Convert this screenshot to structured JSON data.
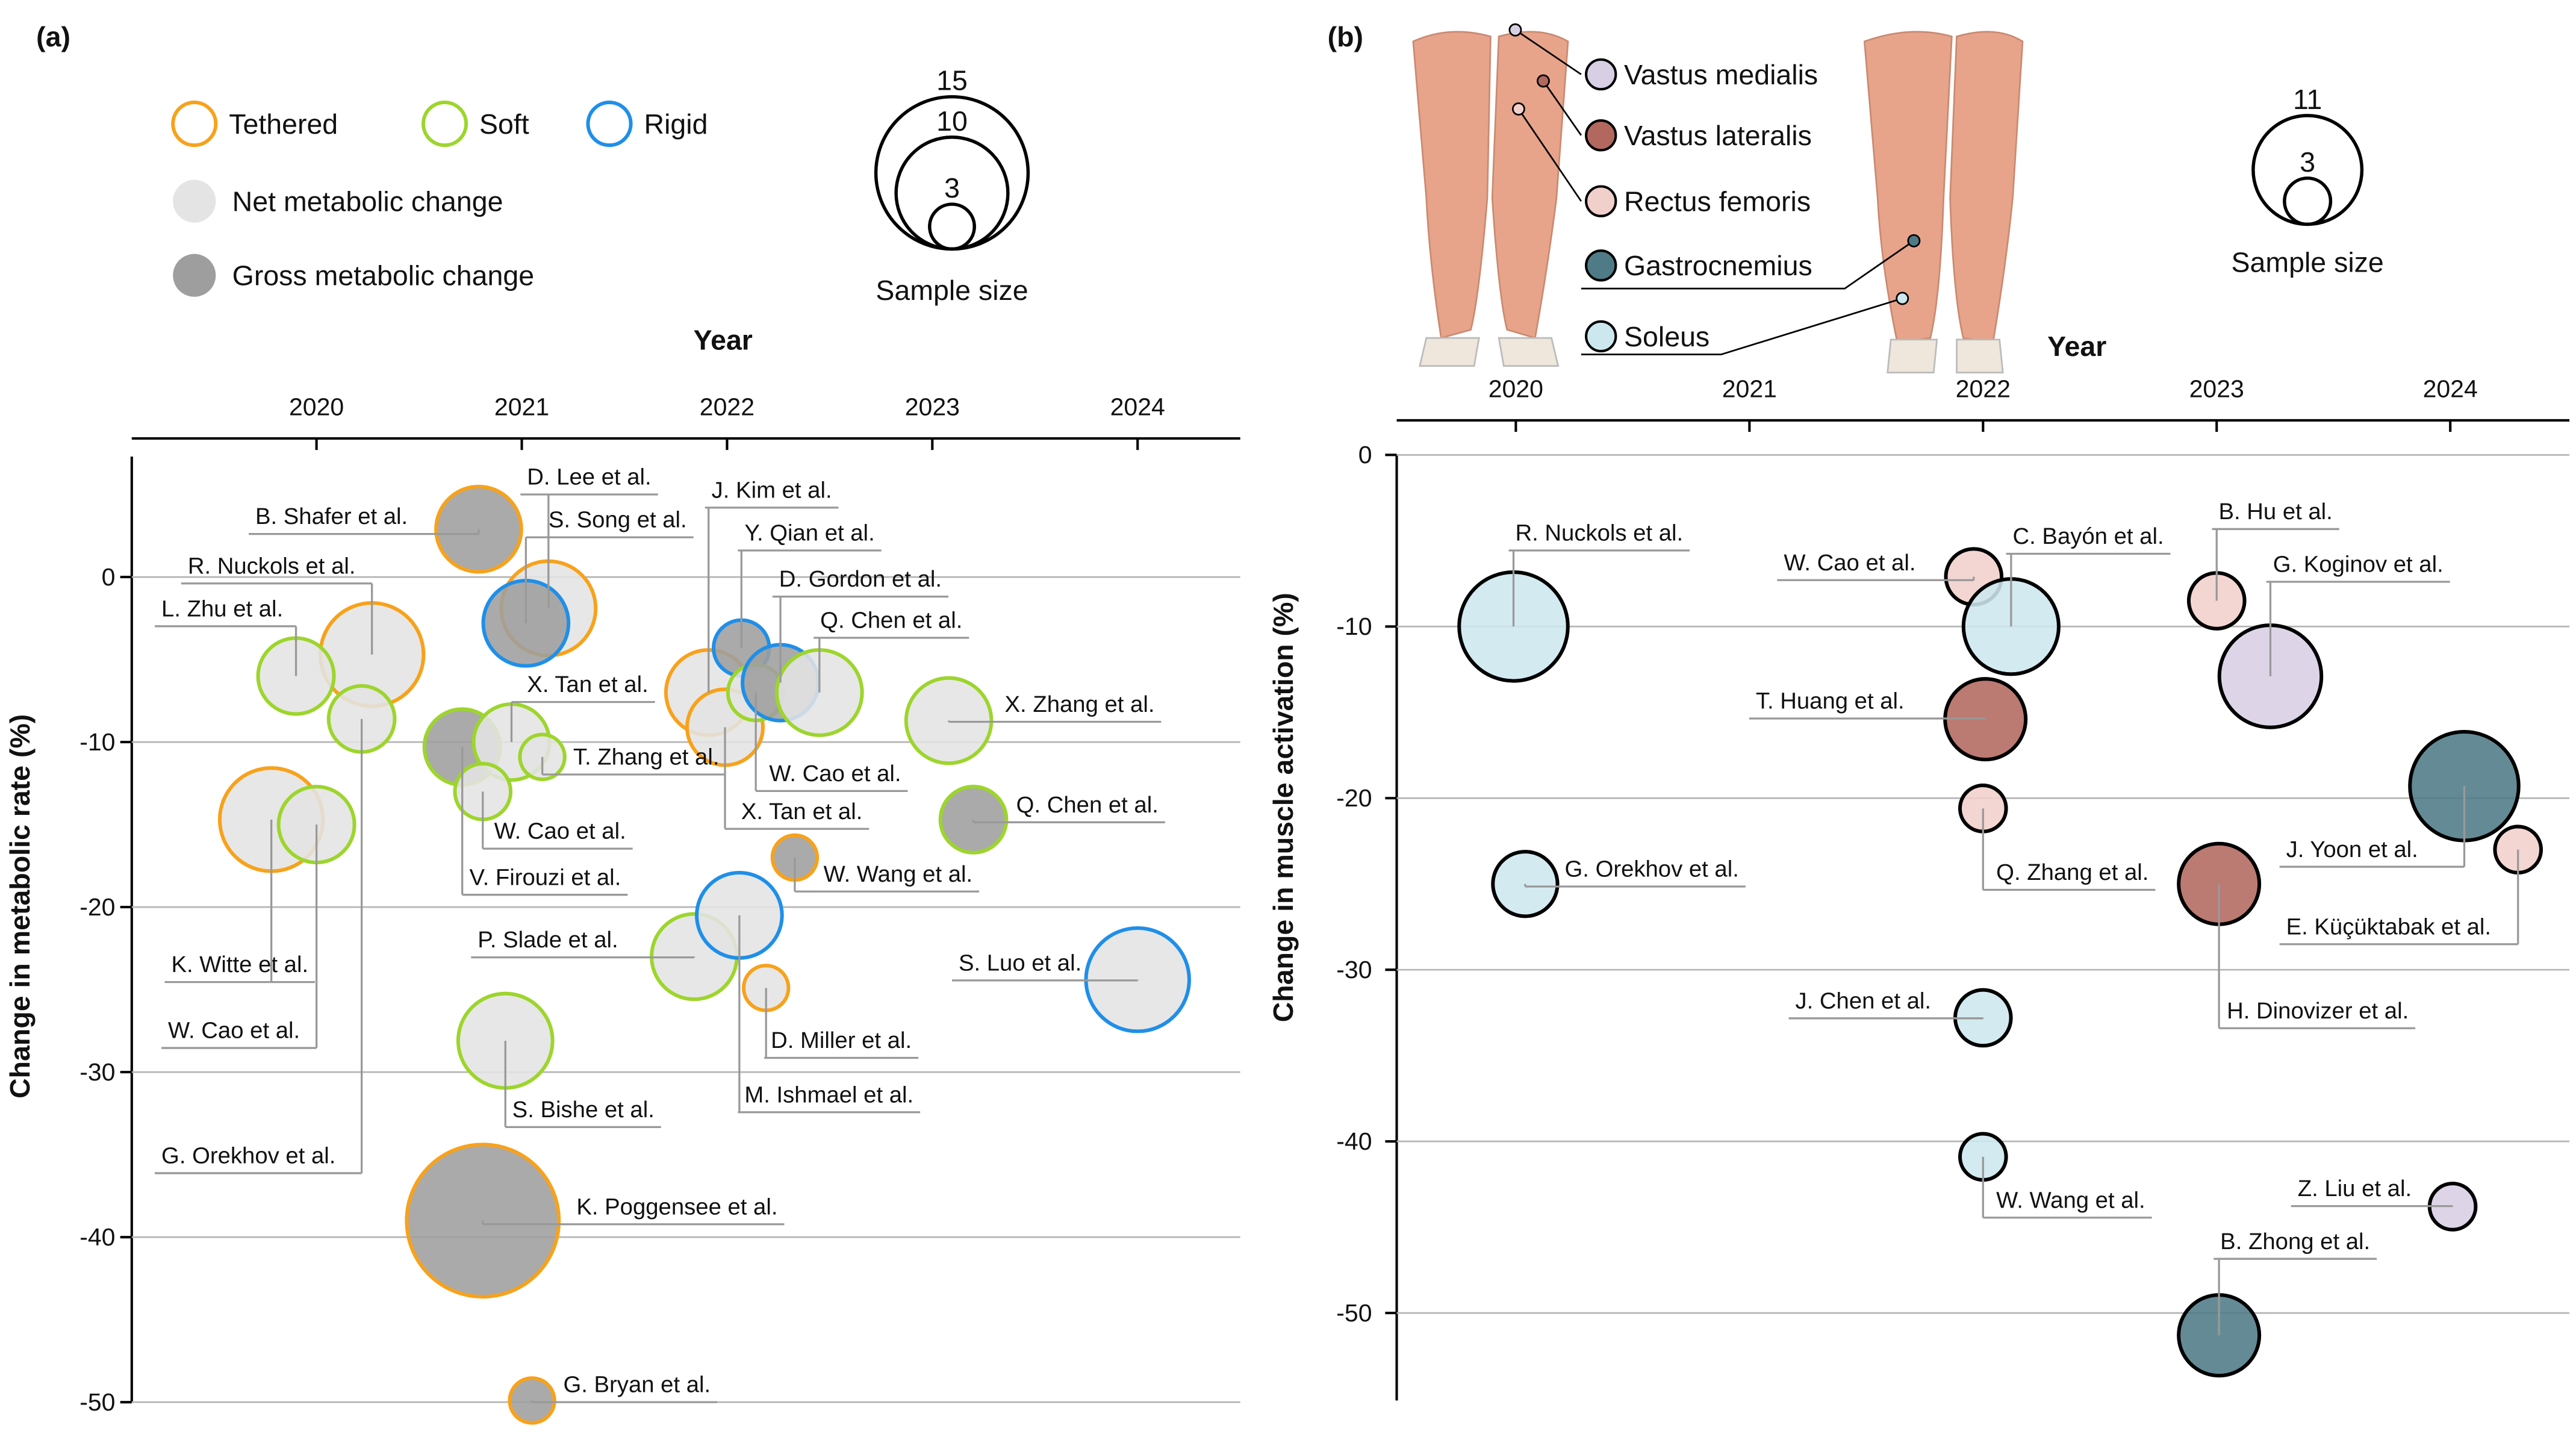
{
  "chart_data": [
    {
      "type": "bubble",
      "panel_label": "(a)",
      "x_label": "Year",
      "y_label": "Change in metabolic rate (%)",
      "x_axis_position": "top",
      "grid": true,
      "xlim": [
        2019.1,
        2024.5
      ],
      "ylim": [
        -50,
        7.3
      ],
      "xticks": [
        2020,
        2021,
        2022,
        2023,
        2024
      ],
      "yticks": [
        0,
        -10,
        -20,
        -30,
        -40,
        -50
      ],
      "edge_groups": [
        {
          "name": "Tethered",
          "color": "#f7a21b"
        },
        {
          "name": "Soft",
          "color": "#9dd52c"
        },
        {
          "name": "Rigid",
          "color": "#1f8fe8"
        }
      ],
      "fill_groups": [
        {
          "name": "Net metabolic change",
          "color": "#e4e4e4"
        },
        {
          "name": "Gross metabolic change",
          "color": "#9e9e9e"
        }
      ],
      "size_legend": {
        "title": "Sample size",
        "sizes": [
          15,
          10,
          3
        ]
      },
      "labels": [
        "B. Shafer et al.",
        "D. Lee et al.",
        "S. Song et al.",
        "R. Nuckols et al.",
        "L. Zhu et al.",
        "G. Orekhov et al.",
        "K. Witte et al.",
        "W. Cao et al.",
        "V. Firouzi et al.",
        "X. Tan et al.",
        "W. Cao et al.",
        "T. Zhang et al.",
        "J. Kim et al.",
        "X. Tan et al.",
        "Y. Qian et al.",
        "W. Cao et al.",
        "D. Gordon et al.",
        "Q. Chen et al.",
        "X. Zhang et al.",
        "Q. Chen et al.",
        "W. Wang et al.",
        "P. Slade et al.",
        "M. Ishmael et al.",
        "D. Miller et al.",
        "S. Luo et al.",
        "S. Bishe et al.",
        "K. Poggensee et al.",
        "G. Bryan et al."
      ],
      "x": [
        2020.79,
        2021.13,
        2021.02,
        2020.27,
        2019.9,
        2020.22,
        2019.78,
        2020.0,
        2020.71,
        2020.95,
        2020.81,
        2021.1,
        2021.91,
        2021.99,
        2022.07,
        2022.14,
        2022.26,
        2022.45,
        2023.08,
        2023.2,
        2022.33,
        2021.84,
        2022.06,
        2022.19,
        2024.0,
        2020.92,
        2020.81,
        2021.05
      ],
      "values": [
        2.9,
        -1.9,
        -2.8,
        -4.7,
        -6,
        -8.6,
        -14.7,
        -15,
        -10.3,
        -10,
        -13,
        -10.9,
        -7,
        -9.1,
        -4.3,
        -7,
        -6.4,
        -7,
        -8.7,
        -14.7,
        -17,
        -23,
        -20.5,
        -24.9,
        -24.4,
        -28.1,
        -39,
        -49.9
      ],
      "sizes": [
        7,
        8,
        7,
        9,
        6,
        5,
        9,
        6,
        6,
        6,
        4,
        3,
        7,
        6,
        4,
        4,
        6,
        7,
        7,
        5,
        3,
        7,
        7,
        3,
        9,
        8,
        15,
        3
      ],
      "point_edge": [
        "Tethered",
        "Tethered",
        "Rigid",
        "Tethered",
        "Soft",
        "Soft",
        "Tethered",
        "Soft",
        "Soft",
        "Soft",
        "Soft",
        "Soft",
        "Tethered",
        "Tethered",
        "Rigid",
        "Soft",
        "Rigid",
        "Soft",
        "Soft",
        "Soft",
        "Tethered",
        "Soft",
        "Rigid",
        "Tethered",
        "Rigid",
        "Soft",
        "Tethered",
        "Tethered"
      ],
      "point_fill": [
        "Gross metabolic change",
        "Net metabolic change",
        "Gross metabolic change",
        "Net metabolic change",
        "Net metabolic change",
        "Net metabolic change",
        "Net metabolic change",
        "Net metabolic change",
        "Gross metabolic change",
        "Net metabolic change",
        "Net metabolic change",
        "Net metabolic change",
        "Net metabolic change",
        "Net metabolic change",
        "Gross metabolic change",
        "Net metabolic change",
        "Gross metabolic change",
        "Net metabolic change",
        "Net metabolic change",
        "Gross metabolic change",
        "Gross metabolic change",
        "Net metabolic change",
        "Net metabolic change",
        "Net metabolic change",
        "Net metabolic change",
        "Net metabolic change",
        "Gross metabolic change",
        "Gross metabolic change"
      ]
    },
    {
      "type": "bubble",
      "panel_label": "(b)",
      "x_label": "Year",
      "y_label": "Change in muscle activation (%)",
      "x_axis_position": "top",
      "grid": true,
      "xlim": [
        2019.49,
        2024.51
      ],
      "ylim": [
        -55.1,
        0
      ],
      "xticks": [
        2020,
        2021,
        2022,
        2023,
        2024
      ],
      "yticks": [
        0,
        -10,
        -20,
        -30,
        -40,
        -50
      ],
      "edge_color": "#000000",
      "fill_groups": [
        {
          "name": "Vastus medialis",
          "color": "#d8cfe4"
        },
        {
          "name": "Vastus lateralis",
          "color": "#b2685e"
        },
        {
          "name": "Rectus femoris",
          "color": "#f1cfcb"
        },
        {
          "name": "Gastrocnemius",
          "color": "#4f7b86"
        },
        {
          "name": "Soleus",
          "color": "#cde7ee"
        }
      ],
      "size_legend": {
        "title": "Sample size",
        "sizes": [
          11,
          3
        ]
      },
      "labels": [
        "R. Nuckols et al.",
        "W. Cao et al.",
        "C. Bayón et al.",
        "T. Huang et al.",
        "Q. Zhang et al.",
        "G. Orekhov et al.",
        "J. Chen et al.",
        "W. Wang et al.",
        "B. Hu et al.",
        "G. Koginov et al.",
        "H. Dinovizer et al.",
        "J. Yoon et al.",
        "E. Küçüktabak et al.",
        "Z. Liu et al.",
        "B. Zhong et al."
      ],
      "x": [
        2019.99,
        2021.96,
        2022.12,
        2022.01,
        2022.0,
        2020.04,
        2022.0,
        2022.0,
        2023.0,
        2023.23,
        2023.01,
        2024.06,
        2024.29,
        2024.01,
        2023.01
      ],
      "values": [
        -10,
        -7.1,
        -10,
        -15.4,
        -20.6,
        -25,
        -32.8,
        -40.9,
        -8.5,
        -12.9,
        -25,
        -19.3,
        -23,
        -43.8,
        -51.3
      ],
      "sizes": [
        11,
        4,
        9,
        7,
        3,
        5,
        4,
        3,
        4,
        10,
        7,
        11,
        3,
        3,
        7
      ],
      "point_fill": [
        "Soleus",
        "Rectus femoris",
        "Soleus",
        "Vastus lateralis",
        "Rectus femoris",
        "Soleus",
        "Soleus",
        "Soleus",
        "Rectus femoris",
        "Vastus medialis",
        "Vastus lateralis",
        "Gastrocnemius",
        "Rectus femoris",
        "Vastus medialis",
        "Gastrocnemius"
      ]
    }
  ]
}
